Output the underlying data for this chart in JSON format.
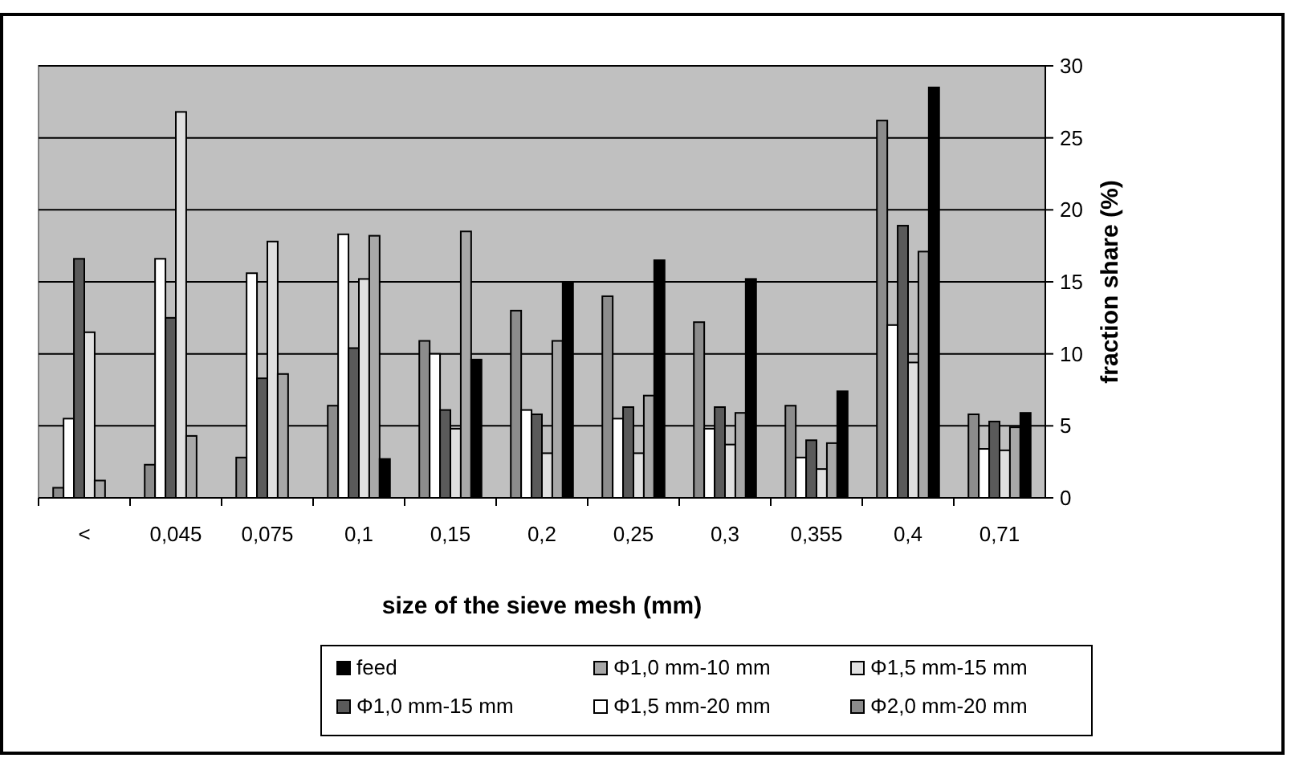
{
  "chart_data": {
    "type": "bar",
    "xlabel": "size of the sieve mesh (mm)",
    "ylabel": "fraction share (%)",
    "categories": [
      "<",
      "0,045",
      "0,075",
      "0,1",
      "0,15",
      "0,2",
      "0,25",
      "0,3",
      "0,355",
      "0,4",
      "0,71"
    ],
    "series": [
      {
        "name": "Φ2,0 mm-20 mm",
        "color": "#8c8c8c",
        "values": [
          0.7,
          2.3,
          2.8,
          6.4,
          10.9,
          13.0,
          14.0,
          12.2,
          6.4,
          26.2,
          5.8
        ]
      },
      {
        "name": "Φ1,5 mm-20 mm",
        "color": "#ffffff",
        "values": [
          5.5,
          16.6,
          15.6,
          18.3,
          10.0,
          6.1,
          5.5,
          4.8,
          2.8,
          12.0,
          3.4
        ]
      },
      {
        "name": "Φ1,0 mm-15 mm",
        "color": "#5a5a5a",
        "values": [
          16.6,
          12.5,
          8.3,
          10.4,
          6.1,
          5.8,
          6.3,
          6.3,
          4.0,
          18.9,
          5.3
        ]
      },
      {
        "name": "Φ1,5 mm-15 mm",
        "color": "#e0e0e0",
        "values": [
          11.5,
          26.8,
          17.8,
          15.2,
          4.8,
          3.1,
          3.1,
          3.7,
          2.0,
          9.4,
          3.3
        ]
      },
      {
        "name": "Φ1,0 mm-10 mm",
        "color": "#a8a8a8",
        "values": [
          1.2,
          4.3,
          8.6,
          18.2,
          18.5,
          10.9,
          7.1,
          5.9,
          3.8,
          17.1,
          4.9
        ]
      },
      {
        "name": "feed",
        "color": "#000000",
        "values": [
          0,
          0,
          0,
          2.7,
          9.6,
          15.0,
          16.5,
          15.2,
          7.4,
          28.5,
          5.9
        ]
      }
    ],
    "ylim": [
      0,
      30
    ],
    "yticks": [
      0,
      5,
      10,
      15,
      20,
      25,
      30
    ],
    "grid": "y",
    "legend": "bottom"
  }
}
